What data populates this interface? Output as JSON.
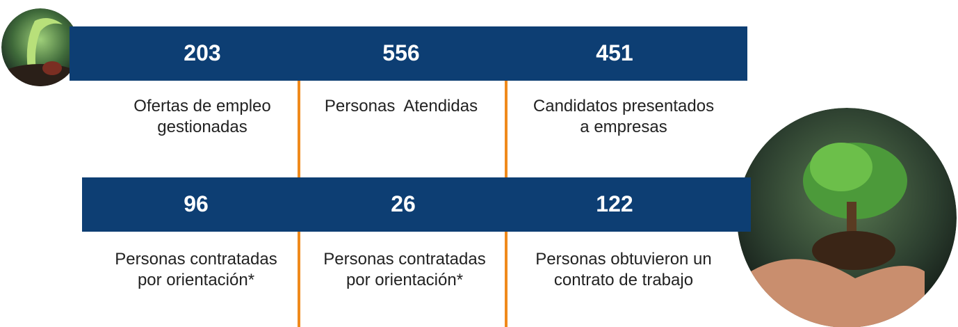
{
  "rows": [
    {
      "stats": [
        {
          "value": 203,
          "label": [
            "Ofertas de empleo",
            "gestionadas"
          ]
        },
        {
          "value": 556,
          "label": [
            "Personas  Atendidas"
          ]
        },
        {
          "value": 451,
          "label": [
            "Candidatos presentados",
            "a empresas"
          ]
        }
      ]
    },
    {
      "stats": [
        {
          "value": 96,
          "label": [
            "Personas contratadas",
            "por orientación*"
          ]
        },
        {
          "value": 26,
          "label": [
            "Personas contratadas",
            "por orientación*"
          ]
        },
        {
          "value": 122,
          "label": [
            "Personas obtuvieron un",
            "contrato de trabajo"
          ]
        }
      ]
    }
  ]
}
